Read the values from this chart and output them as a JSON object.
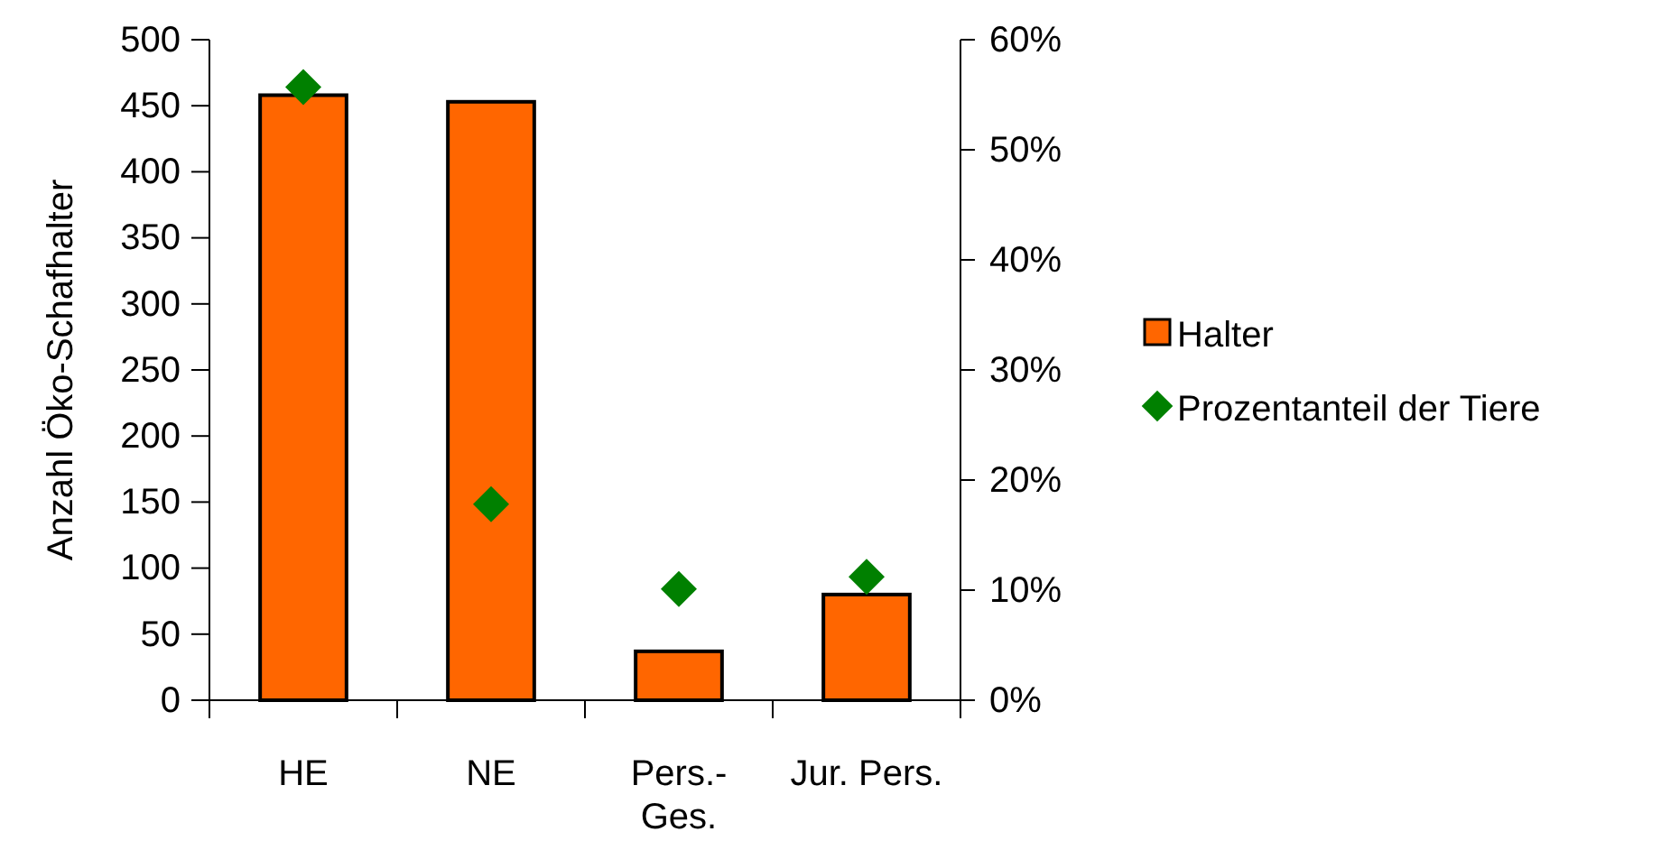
{
  "chart_data": {
    "type": "bar",
    "categories": [
      "HE",
      "NE",
      "Pers.-Ges.",
      "Jur. Pers."
    ],
    "ylabel": "Anzahl Öko-Schafhalter",
    "ylim": [
      0,
      500
    ],
    "yticks": [
      0,
      50,
      100,
      150,
      200,
      250,
      300,
      350,
      400,
      450,
      500
    ],
    "y2lim": [
      0,
      60
    ],
    "y2ticks": [
      {
        "value": 0,
        "label": "0%"
      },
      {
        "value": 10,
        "label": "10%"
      },
      {
        "value": 20,
        "label": "20%"
      },
      {
        "value": 30,
        "label": "30%"
      },
      {
        "value": 40,
        "label": "40%"
      },
      {
        "value": 50,
        "label": "50%"
      },
      {
        "value": 60,
        "label": "60%"
      }
    ],
    "grid": false,
    "legend": "right",
    "series": [
      {
        "name": "Halter",
        "type": "bar",
        "color": "#ff6600",
        "values": [
          458,
          453,
          37,
          80
        ]
      },
      {
        "name": "Prozentanteil der Tiere",
        "type": "scatter",
        "axis": "y2",
        "marker": "diamond",
        "color": "#008000",
        "values": [
          55.7,
          17.8,
          10.1,
          11.2
        ]
      }
    ]
  }
}
